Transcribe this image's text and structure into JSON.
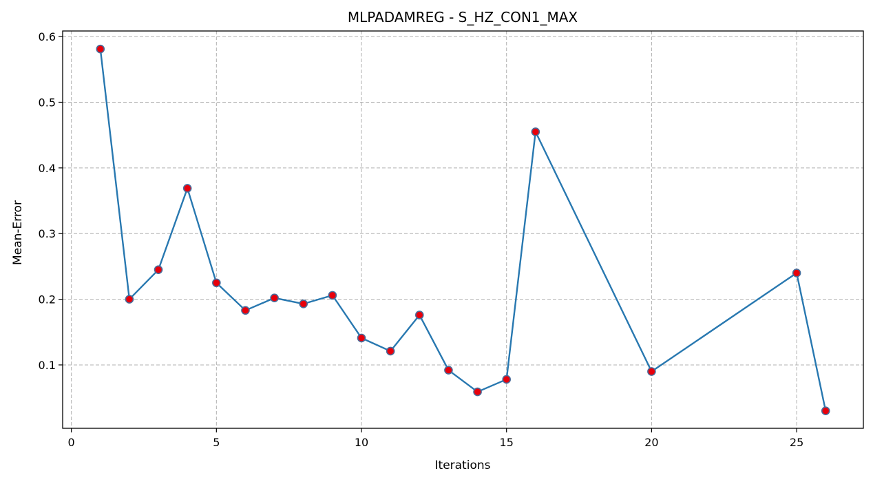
{
  "chart_data": {
    "type": "line",
    "title": "MLPADAMREG - S_HZ_CON1_MAX",
    "xlabel": "Iterations",
    "ylabel": "Mean-Error",
    "xlim": [
      -0.3,
      27.3
    ],
    "ylim": [
      0.0035,
      0.6085
    ],
    "xticks": [
      0,
      5,
      10,
      15,
      20,
      25
    ],
    "xtick_labels": [
      "0",
      "5",
      "10",
      "15",
      "20",
      "25"
    ],
    "yticks": [
      0.1,
      0.2,
      0.3,
      0.4,
      0.5,
      0.6
    ],
    "ytick_labels": [
      "0.1",
      "0.2",
      "0.3",
      "0.4",
      "0.5",
      "0.6"
    ],
    "grid": true,
    "line_color": "#2878b0",
    "marker_face_color": "#e8000b",
    "marker_edge_color": "#4a6c9a",
    "series": [
      {
        "x": [
          1,
          2,
          3,
          4,
          5,
          6,
          7,
          8,
          9,
          10,
          11,
          12,
          13,
          14,
          15,
          16,
          20,
          25,
          26
        ],
        "values": [
          0.581,
          0.2,
          0.245,
          0.369,
          0.225,
          0.183,
          0.202,
          0.193,
          0.206,
          0.141,
          0.121,
          0.176,
          0.092,
          0.059,
          0.078,
          0.455,
          0.09,
          0.24,
          0.03
        ]
      }
    ]
  }
}
